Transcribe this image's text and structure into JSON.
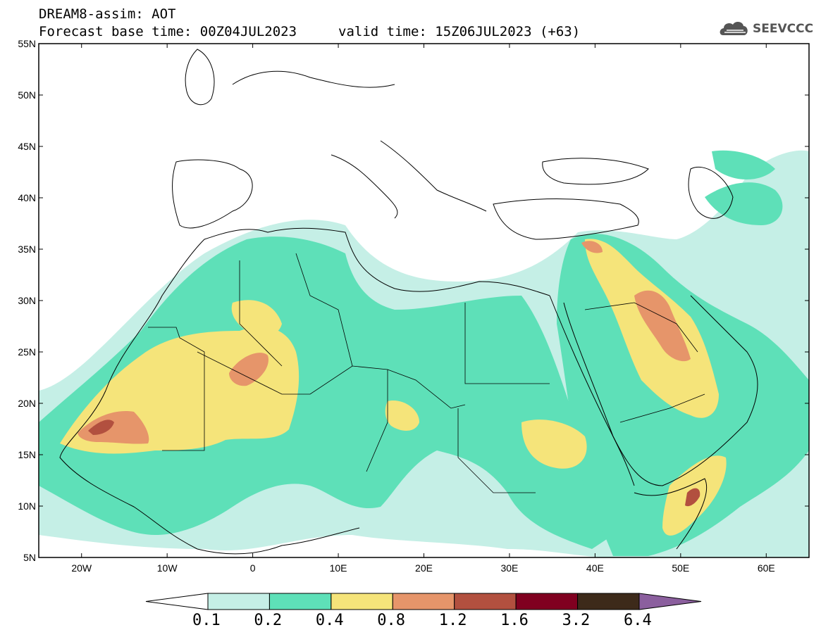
{
  "header": {
    "title": "DREAM8-assim: AOT",
    "forecast_base": "Forecast base time: 00Z04JUL2023",
    "valid_time": "valid time: 15Z06JUL2023 (+63)",
    "logo_text": "SEEVCCC"
  },
  "map": {
    "lat_labels": [
      "55N",
      "50N",
      "45N",
      "40N",
      "35N",
      "30N",
      "25N",
      "20N",
      "15N",
      "10N",
      "5N"
    ],
    "lon_labels": [
      "20W",
      "10W",
      "0",
      "10E",
      "20E",
      "30E",
      "40E",
      "50E",
      "60E"
    ],
    "extent": {
      "lon_min": -25,
      "lon_max": 65,
      "lat_min": 5,
      "lat_max": 55
    }
  },
  "colorbar": {
    "thresholds": [
      "0.1",
      "0.2",
      "0.4",
      "0.8",
      "1.2",
      "1.6",
      "3.2",
      "6.4"
    ],
    "colors": [
      "#ffffff",
      "#c5efe6",
      "#5ee0b8",
      "#f5e47a",
      "#e6956a",
      "#b2503f",
      "#800020",
      "#3d2a1a",
      "#8b5f9e"
    ]
  }
}
